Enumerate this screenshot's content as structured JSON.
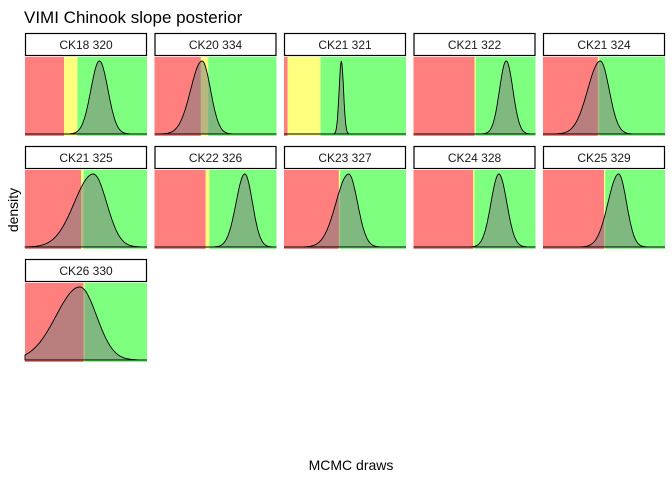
{
  "chart_data": {
    "type": "area",
    "title": "VIMI Chinook slope posterior",
    "xlabel": "MCMC draws",
    "ylabel": "density",
    "x_axis_ticks": "none",
    "y_axis_ticks": "none",
    "grid": false,
    "legend": "none",
    "layout": {
      "ncol": 5,
      "nrow": 3
    },
    "x_domain": [
      0,
      1
    ],
    "zone_colors": {
      "red": "#ff7f7f",
      "yellow": "#ffff7f",
      "green": "#7fff7f"
    },
    "density_fill": "#808080",
    "density_line": "#000000",
    "panels": [
      {
        "label": "CK18 320",
        "red_end": 0.32,
        "yellow_end": 0.43,
        "mean": 0.61,
        "sd": 0.07,
        "skew": 0.0
      },
      {
        "label": "CK20 334",
        "red_end": 0.38,
        "yellow_end": 0.44,
        "mean": 0.39,
        "sd": 0.075,
        "skew": -0.25
      },
      {
        "label": "CK21 321",
        "red_end": 0.03,
        "yellow_end": 0.3,
        "mean": 0.47,
        "sd": 0.018,
        "skew": 0.0
      },
      {
        "label": "CK21 322",
        "red_end": 0.5,
        "yellow_end": 0.51,
        "mean": 0.76,
        "sd": 0.055,
        "skew": 0.0
      },
      {
        "label": "CK21 324",
        "red_end": 0.45,
        "yellow_end": 0.46,
        "mean": 0.47,
        "sd": 0.08,
        "skew": -0.3
      },
      {
        "label": "CK21 325",
        "red_end": 0.46,
        "yellow_end": 0.48,
        "mean": 0.56,
        "sd": 0.12,
        "skew": -0.3
      },
      {
        "label": "CK22 326",
        "red_end": 0.42,
        "yellow_end": 0.45,
        "mean": 0.74,
        "sd": 0.065,
        "skew": -0.1
      },
      {
        "label": "CK23 327",
        "red_end": 0.45,
        "yellow_end": 0.46,
        "mean": 0.53,
        "sd": 0.08,
        "skew": -0.3
      },
      {
        "label": "CK24 328",
        "red_end": 0.49,
        "yellow_end": 0.5,
        "mean": 0.7,
        "sd": 0.065,
        "skew": 0.0
      },
      {
        "label": "CK25 329",
        "red_end": 0.5,
        "yellow_end": 0.51,
        "mean": 0.62,
        "sd": 0.07,
        "skew": -0.25
      },
      {
        "label": "CK26 330",
        "red_end": 0.48,
        "yellow_end": 0.49,
        "mean": 0.45,
        "sd": 0.15,
        "skew": -0.3
      }
    ]
  }
}
